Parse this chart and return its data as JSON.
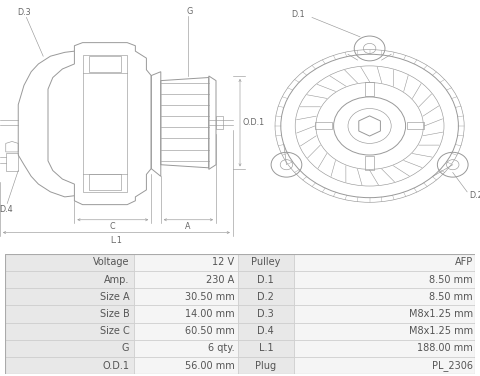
{
  "bg_color": "#ffffff",
  "table_label_bg": "#e8e8e8",
  "table_value_bg": "#f5f5f5",
  "table_border_color": "#cccccc",
  "table_text_color": "#555555",
  "diagram_line_color": "#999999",
  "diagram_line_color_dark": "#777777",
  "label_color": "#666666",
  "rows": [
    [
      "Voltage",
      "12 V",
      "Pulley",
      "AFP"
    ],
    [
      "Amp.",
      "230 A",
      "D.1",
      "8.50 mm"
    ],
    [
      "Size A",
      "30.50 mm",
      "D.2",
      "8.50 mm"
    ],
    [
      "Size B",
      "14.00 mm",
      "D.3",
      "M8x1.25 mm"
    ],
    [
      "Size C",
      "60.50 mm",
      "D.4",
      "M8x1.25 mm"
    ],
    [
      "G",
      "6 qty.",
      "L.1",
      "188.00 mm"
    ],
    [
      "O.D.1",
      "56.00 mm",
      "Plug",
      "PL_2306"
    ]
  ],
  "font_size_table": 7.0,
  "font_size_label": 5.8
}
